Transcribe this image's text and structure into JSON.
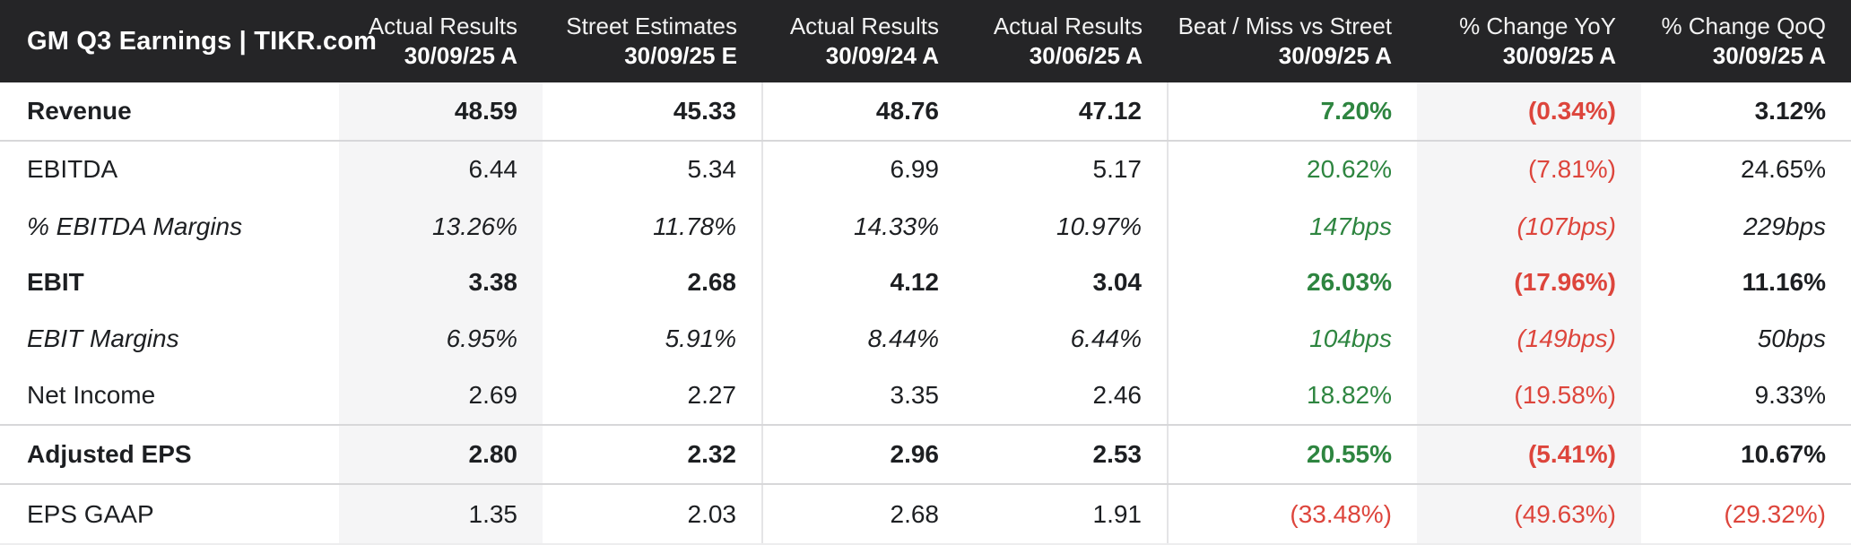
{
  "palette": {
    "header_bg": "#252527",
    "header_fg": "#ffffff",
    "body_fg": "#1d1f22",
    "shaded_column_bg": "#f5f5f6",
    "positive": "#2e8540",
    "negative": "#dd453c",
    "horizontal_rule": "#d7d7d9",
    "vertical_rule": "#e4e4e6"
  },
  "table": {
    "title": "GM Q3 Earnings | TIKR.com",
    "columns": [
      {
        "line1": "Actual Results",
        "line2": "30/09/25 A"
      },
      {
        "line1": "Street Estimates",
        "line2": "30/09/25 E"
      },
      {
        "line1": "Actual Results",
        "line2": "30/09/24 A"
      },
      {
        "line1": "Actual Results",
        "line2": "30/06/25 A"
      },
      {
        "line1": "Beat / Miss vs Street",
        "line2": "30/09/25 A"
      },
      {
        "line1": "% Change YoY",
        "line2": "30/09/25 A"
      },
      {
        "line1": "% Change QoQ",
        "line2": "30/09/25 A"
      }
    ],
    "rows": [
      {
        "label": "Revenue",
        "emphasis": "bold",
        "divider_below": true,
        "cells": [
          {
            "text": "48.59"
          },
          {
            "text": "45.33"
          },
          {
            "text": "48.76"
          },
          {
            "text": "47.12"
          },
          {
            "text": "7.20%",
            "color": "green"
          },
          {
            "text": "(0.34%)",
            "color": "red"
          },
          {
            "text": "3.12%"
          }
        ]
      },
      {
        "label": "EBITDA",
        "emphasis": "normal",
        "divider_below": false,
        "cells": [
          {
            "text": "6.44"
          },
          {
            "text": "5.34"
          },
          {
            "text": "6.99"
          },
          {
            "text": "5.17"
          },
          {
            "text": "20.62%",
            "color": "green"
          },
          {
            "text": "(7.81%)",
            "color": "red"
          },
          {
            "text": "24.65%"
          }
        ]
      },
      {
        "label": "% EBITDA Margins",
        "emphasis": "italic",
        "divider_below": false,
        "cells": [
          {
            "text": "13.26%"
          },
          {
            "text": "11.78%"
          },
          {
            "text": "14.33%"
          },
          {
            "text": "10.97%"
          },
          {
            "text": "147bps",
            "color": "green"
          },
          {
            "text": "(107bps)",
            "color": "red"
          },
          {
            "text": "229bps"
          }
        ]
      },
      {
        "label": "EBIT",
        "emphasis": "bold",
        "divider_below": false,
        "cells": [
          {
            "text": "3.38"
          },
          {
            "text": "2.68"
          },
          {
            "text": "4.12"
          },
          {
            "text": "3.04"
          },
          {
            "text": "26.03%",
            "color": "green"
          },
          {
            "text": "(17.96%)",
            "color": "red"
          },
          {
            "text": "11.16%"
          }
        ]
      },
      {
        "label": "EBIT Margins",
        "emphasis": "italic",
        "divider_below": false,
        "cells": [
          {
            "text": "6.95%"
          },
          {
            "text": "5.91%"
          },
          {
            "text": "8.44%"
          },
          {
            "text": "6.44%"
          },
          {
            "text": "104bps",
            "color": "green"
          },
          {
            "text": "(149bps)",
            "color": "red"
          },
          {
            "text": "50bps"
          }
        ]
      },
      {
        "label": "Net Income",
        "emphasis": "normal",
        "divider_below": true,
        "cells": [
          {
            "text": "2.69"
          },
          {
            "text": "2.27"
          },
          {
            "text": "3.35"
          },
          {
            "text": "2.46"
          },
          {
            "text": "18.82%",
            "color": "green"
          },
          {
            "text": "(19.58%)",
            "color": "red"
          },
          {
            "text": "9.33%"
          }
        ]
      },
      {
        "label": "Adjusted EPS",
        "emphasis": "bold",
        "divider_below": true,
        "cells": [
          {
            "text": "2.80"
          },
          {
            "text": "2.32"
          },
          {
            "text": "2.96"
          },
          {
            "text": "2.53"
          },
          {
            "text": "20.55%",
            "color": "green"
          },
          {
            "text": "(5.41%)",
            "color": "red"
          },
          {
            "text": "10.67%"
          }
        ]
      },
      {
        "label": "EPS GAAP",
        "emphasis": "normal",
        "divider_below": false,
        "cells": [
          {
            "text": "1.35"
          },
          {
            "text": "2.03"
          },
          {
            "text": "2.68"
          },
          {
            "text": "1.91"
          },
          {
            "text": "(33.48%)",
            "color": "red"
          },
          {
            "text": "(49.63%)",
            "color": "red"
          },
          {
            "text": "(29.32%)",
            "color": "red"
          }
        ]
      }
    ]
  },
  "chart_data": {
    "type": "table",
    "title": "GM Q3 Earnings | TIKR.com",
    "columns": [
      "Actual Results 30/09/25 A",
      "Street Estimates 30/09/25 E",
      "Actual Results 30/09/24 A",
      "Actual Results 30/06/25 A",
      "Beat / Miss vs Street 30/09/25 A",
      "% Change YoY 30/09/25 A",
      "% Change QoQ 30/09/25 A"
    ],
    "rows": [
      {
        "metric": "Revenue",
        "values": [
          "48.59",
          "45.33",
          "48.76",
          "47.12",
          "7.20%",
          "(0.34%)",
          "3.12%"
        ]
      },
      {
        "metric": "EBITDA",
        "values": [
          "6.44",
          "5.34",
          "6.99",
          "5.17",
          "20.62%",
          "(7.81%)",
          "24.65%"
        ]
      },
      {
        "metric": "% EBITDA Margins",
        "values": [
          "13.26%",
          "11.78%",
          "14.33%",
          "10.97%",
          "147bps",
          "(107bps)",
          "229bps"
        ]
      },
      {
        "metric": "EBIT",
        "values": [
          "3.38",
          "2.68",
          "4.12",
          "3.04",
          "26.03%",
          "(17.96%)",
          "11.16%"
        ]
      },
      {
        "metric": "EBIT Margins",
        "values": [
          "6.95%",
          "5.91%",
          "8.44%",
          "6.44%",
          "104bps",
          "(149bps)",
          "50bps"
        ]
      },
      {
        "metric": "Net Income",
        "values": [
          "2.69",
          "2.27",
          "3.35",
          "2.46",
          "18.82%",
          "(19.58%)",
          "9.33%"
        ]
      },
      {
        "metric": "Adjusted EPS",
        "values": [
          "2.80",
          "2.32",
          "2.96",
          "2.53",
          "20.55%",
          "(5.41%)",
          "10.67%"
        ]
      },
      {
        "metric": "EPS GAAP",
        "values": [
          "1.35",
          "2.03",
          "2.68",
          "1.91",
          "(33.48%)",
          "(49.63%)",
          "(29.32%)"
        ]
      }
    ],
    "notes": "Negative values shown in parentheses (red); beats/positive deltas in green; bold rows are summary metrics; margin rows italic."
  }
}
